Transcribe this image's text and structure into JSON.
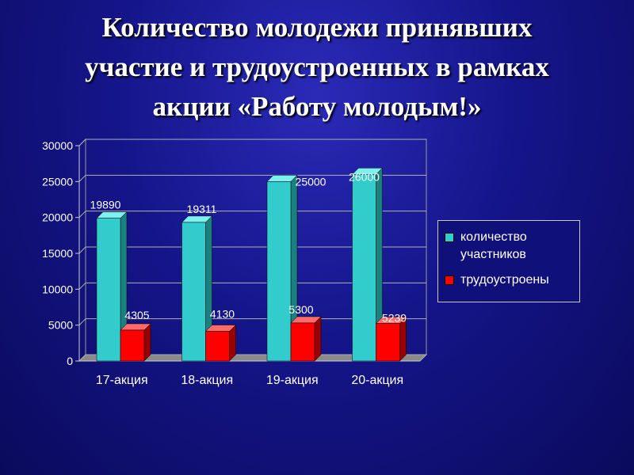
{
  "title": {
    "line1": "Количество молодежи принявших",
    "line2": "участие и трудоустроенных в рамках",
    "line3": "акции «Работу молодым!»"
  },
  "colors": {
    "background": "#15158a",
    "participants": "#33cccc",
    "employed": "#ff0000",
    "text": "#ffffff"
  },
  "chart_data": {
    "type": "bar",
    "categories": [
      "17-акция",
      "18-акция",
      "19-акция",
      "20-акция"
    ],
    "series": [
      {
        "name": "количество участников",
        "values": [
          19890,
          19311,
          25000,
          26000
        ],
        "labels": [
          "19890",
          "19311",
          "25000",
          "26000"
        ]
      },
      {
        "name": "трудоустроены",
        "values": [
          4305,
          4130,
          5300,
          5239
        ],
        "labels": [
          "4305",
          "4130",
          "5300",
          "5239"
        ]
      }
    ],
    "ylim": [
      0,
      30000
    ],
    "yticks": [
      0,
      5000,
      10000,
      15000,
      20000,
      25000,
      30000
    ],
    "grid": true,
    "legend_position": "right",
    "style": "3d"
  },
  "legend": {
    "items": [
      {
        "label": "количество участников",
        "color": "#33cccc"
      },
      {
        "label": "трудоустроены",
        "color": "#ff0000"
      }
    ]
  }
}
